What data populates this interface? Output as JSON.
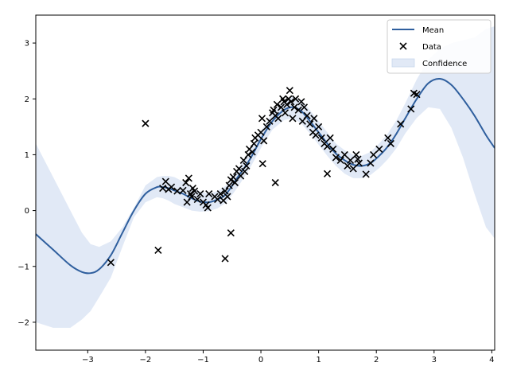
{
  "chart_data": {
    "type": "scatter",
    "title": "",
    "xlabel": "",
    "ylabel": "",
    "xlim": [
      -3.9,
      4.05
    ],
    "ylim": [
      -2.5,
      3.5
    ],
    "xticks": [
      -3,
      -2,
      -1,
      0,
      1,
      2,
      3,
      4
    ],
    "yticks": [
      -2,
      -1,
      0,
      1,
      2,
      3
    ],
    "grid": false,
    "legend_position": "top-right",
    "legend": [
      "Mean",
      "Data",
      "Confidence"
    ],
    "colors": {
      "mean": "#2f5f9e",
      "band": "#c9d7ee",
      "data": "#000000"
    },
    "mean_series": {
      "name": "Mean",
      "x": [
        -3.9,
        -3.6,
        -3.3,
        -3.1,
        -2.95,
        -2.8,
        -2.6,
        -2.4,
        -2.2,
        -2.0,
        -1.8,
        -1.7,
        -1.6,
        -1.5,
        -1.35,
        -1.2,
        -1.05,
        -0.9,
        -0.75,
        -0.6,
        -0.4,
        -0.2,
        0.0,
        0.2,
        0.4,
        0.55,
        0.7,
        0.85,
        1.0,
        1.15,
        1.3,
        1.45,
        1.6,
        1.75,
        1.9,
        2.05,
        2.2,
        2.35,
        2.5,
        2.7,
        2.9,
        3.1,
        3.3,
        3.5,
        3.7,
        3.9,
        4.05
      ],
      "y": [
        -0.42,
        -0.7,
        -0.98,
        -1.1,
        -1.12,
        -1.05,
        -0.8,
        -0.4,
        0.0,
        0.3,
        0.42,
        0.42,
        0.4,
        0.36,
        0.3,
        0.22,
        0.16,
        0.15,
        0.2,
        0.3,
        0.6,
        0.9,
        1.28,
        1.6,
        1.8,
        1.85,
        1.78,
        1.6,
        1.4,
        1.2,
        1.02,
        0.9,
        0.82,
        0.8,
        0.85,
        0.98,
        1.15,
        1.38,
        1.65,
        2.0,
        2.28,
        2.36,
        2.25,
        2.0,
        1.7,
        1.35,
        1.12
      ]
    },
    "confidence_band": {
      "name": "Confidence",
      "x": [
        -3.9,
        -3.6,
        -3.3,
        -3.1,
        -2.95,
        -2.8,
        -2.6,
        -2.4,
        -2.2,
        -2.0,
        -1.8,
        -1.7,
        -1.6,
        -1.5,
        -1.35,
        -1.2,
        -1.05,
        -0.9,
        -0.75,
        -0.6,
        -0.4,
        -0.2,
        0.0,
        0.2,
        0.4,
        0.55,
        0.7,
        0.85,
        1.0,
        1.15,
        1.3,
        1.45,
        1.6,
        1.75,
        1.9,
        2.05,
        2.2,
        2.35,
        2.5,
        2.7,
        2.9,
        3.1,
        3.3,
        3.5,
        3.7,
        3.9,
        4.05
      ],
      "upper": [
        1.2,
        0.6,
        0.0,
        -0.4,
        -0.6,
        -0.65,
        -0.55,
        -0.3,
        0.05,
        0.45,
        0.6,
        0.62,
        0.62,
        0.6,
        0.52,
        0.42,
        0.34,
        0.3,
        0.35,
        0.45,
        0.75,
        1.05,
        1.42,
        1.75,
        1.98,
        2.05,
        1.98,
        1.8,
        1.6,
        1.4,
        1.2,
        1.08,
        1.0,
        0.98,
        1.05,
        1.2,
        1.38,
        1.62,
        1.92,
        2.35,
        2.7,
        2.9,
        3.0,
        3.05,
        3.1,
        3.25,
        3.3
      ],
      "lower": [
        -2.0,
        -2.1,
        -2.1,
        -1.95,
        -1.8,
        -1.55,
        -1.2,
        -0.65,
        -0.12,
        0.15,
        0.24,
        0.22,
        0.18,
        0.12,
        0.06,
        0.0,
        -0.02,
        -0.01,
        0.04,
        0.14,
        0.42,
        0.74,
        1.12,
        1.45,
        1.62,
        1.65,
        1.56,
        1.38,
        1.18,
        0.98,
        0.8,
        0.66,
        0.58,
        0.58,
        0.64,
        0.76,
        0.92,
        1.12,
        1.38,
        1.66,
        1.85,
        1.82,
        1.48,
        0.95,
        0.3,
        -0.3,
        -0.5
      ]
    },
    "scatter_series": {
      "name": "Data",
      "x": [
        -2.6,
        -2.0,
        -1.78,
        -1.7,
        -1.65,
        -1.6,
        -1.55,
        -1.45,
        -1.35,
        -1.3,
        -1.28,
        -1.25,
        -1.22,
        -1.2,
        -1.18,
        -1.15,
        -1.1,
        -1.05,
        -1.0,
        -0.95,
        -0.92,
        -0.9,
        -0.8,
        -0.75,
        -0.7,
        -0.65,
        -0.62,
        -0.58,
        -0.55,
        -0.52,
        -0.48,
        -0.45,
        -0.42,
        -0.38,
        -0.35,
        -0.3,
        -0.28,
        -0.25,
        -0.22,
        -0.2,
        -0.15,
        -0.12,
        -0.1,
        -0.05,
        0.0,
        0.02,
        0.05,
        0.1,
        0.15,
        0.2,
        0.22,
        0.25,
        0.28,
        0.3,
        0.35,
        0.38,
        0.4,
        0.42,
        0.45,
        0.48,
        0.5,
        0.52,
        0.55,
        0.58,
        0.6,
        0.65,
        0.7,
        0.72,
        0.75,
        0.8,
        0.85,
        0.9,
        0.92,
        0.95,
        1.0,
        1.05,
        1.1,
        1.15,
        1.2,
        1.25,
        1.3,
        1.38,
        1.45,
        1.5,
        1.55,
        1.6,
        1.65,
        1.7,
        1.82,
        1.9,
        1.95,
        2.05,
        2.2,
        2.25,
        2.42,
        2.6,
        2.65,
        2.7,
        -0.62,
        -0.52,
        0.03,
        0.25,
        1.15,
        1.68
      ],
      "y": [
        -0.93,
        1.56,
        -0.71,
        0.4,
        0.52,
        0.38,
        0.42,
        0.35,
        0.36,
        0.5,
        0.15,
        0.58,
        0.3,
        0.25,
        0.4,
        0.35,
        0.2,
        0.3,
        0.15,
        0.1,
        0.05,
        0.3,
        0.25,
        0.2,
        0.3,
        0.18,
        0.35,
        0.25,
        0.45,
        0.55,
        0.6,
        0.5,
        0.7,
        0.75,
        0.62,
        0.9,
        0.7,
        0.8,
        1.0,
        1.1,
        1.05,
        1.2,
        1.3,
        1.35,
        1.4,
        1.65,
        1.25,
        1.5,
        1.6,
        1.75,
        1.8,
        1.7,
        1.9,
        1.65,
        1.85,
        2.0,
        1.95,
        1.75,
        1.9,
        2.0,
        2.15,
        1.95,
        1.65,
        1.85,
        2.0,
        1.8,
        1.95,
        1.6,
        1.85,
        1.7,
        1.55,
        1.4,
        1.65,
        1.35,
        1.5,
        1.3,
        1.2,
        1.15,
        1.3,
        1.1,
        0.95,
        0.9,
        1.0,
        0.8,
        0.9,
        0.75,
        1.0,
        0.85,
        0.65,
        0.85,
        1.0,
        1.1,
        1.3,
        1.2,
        1.55,
        1.82,
        2.1,
        2.08,
        -0.86,
        -0.4,
        0.84,
        0.5,
        0.66,
        0.92
      ]
    }
  }
}
